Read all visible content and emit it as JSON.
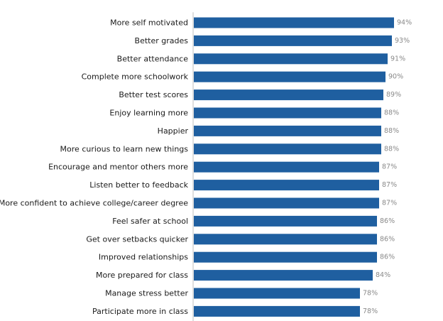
{
  "chart_data": {
    "type": "bar",
    "orientation": "horizontal",
    "categories": [
      "More self motivated",
      "Better grades",
      "Better attendance",
      "Complete more schoolwork",
      "Better test scores",
      "Enjoy learning more",
      "Happier",
      "More curious to learn new things",
      "Encourage and mentor others more",
      "Listen better to feedback",
      "More confident to achieve college/career degree",
      "Feel safer at school",
      "Get over setbacks quicker",
      "Improved relationships",
      "More prepared for class",
      "Manage stress better",
      "Participate more in class"
    ],
    "values": [
      94,
      93,
      91,
      90,
      89,
      88,
      88,
      88,
      87,
      87,
      87,
      86,
      86,
      86,
      84,
      78,
      78
    ],
    "value_labels": [
      "94%",
      "93%",
      "91%",
      "90%",
      "89%",
      "88%",
      "88%",
      "88%",
      "87%",
      "87%",
      "87%",
      "86%",
      "86%",
      "86%",
      "84%",
      "78%",
      "78%"
    ],
    "xlim": [
      0,
      100
    ],
    "title": "",
    "xlabel": "",
    "ylabel": "",
    "grid": false,
    "legend": "none",
    "bar_color": "#1f5fa0",
    "value_label_color": "#8a8a8a",
    "label_color": "#1a1a1a",
    "axis_color": "#bfbfbf"
  }
}
